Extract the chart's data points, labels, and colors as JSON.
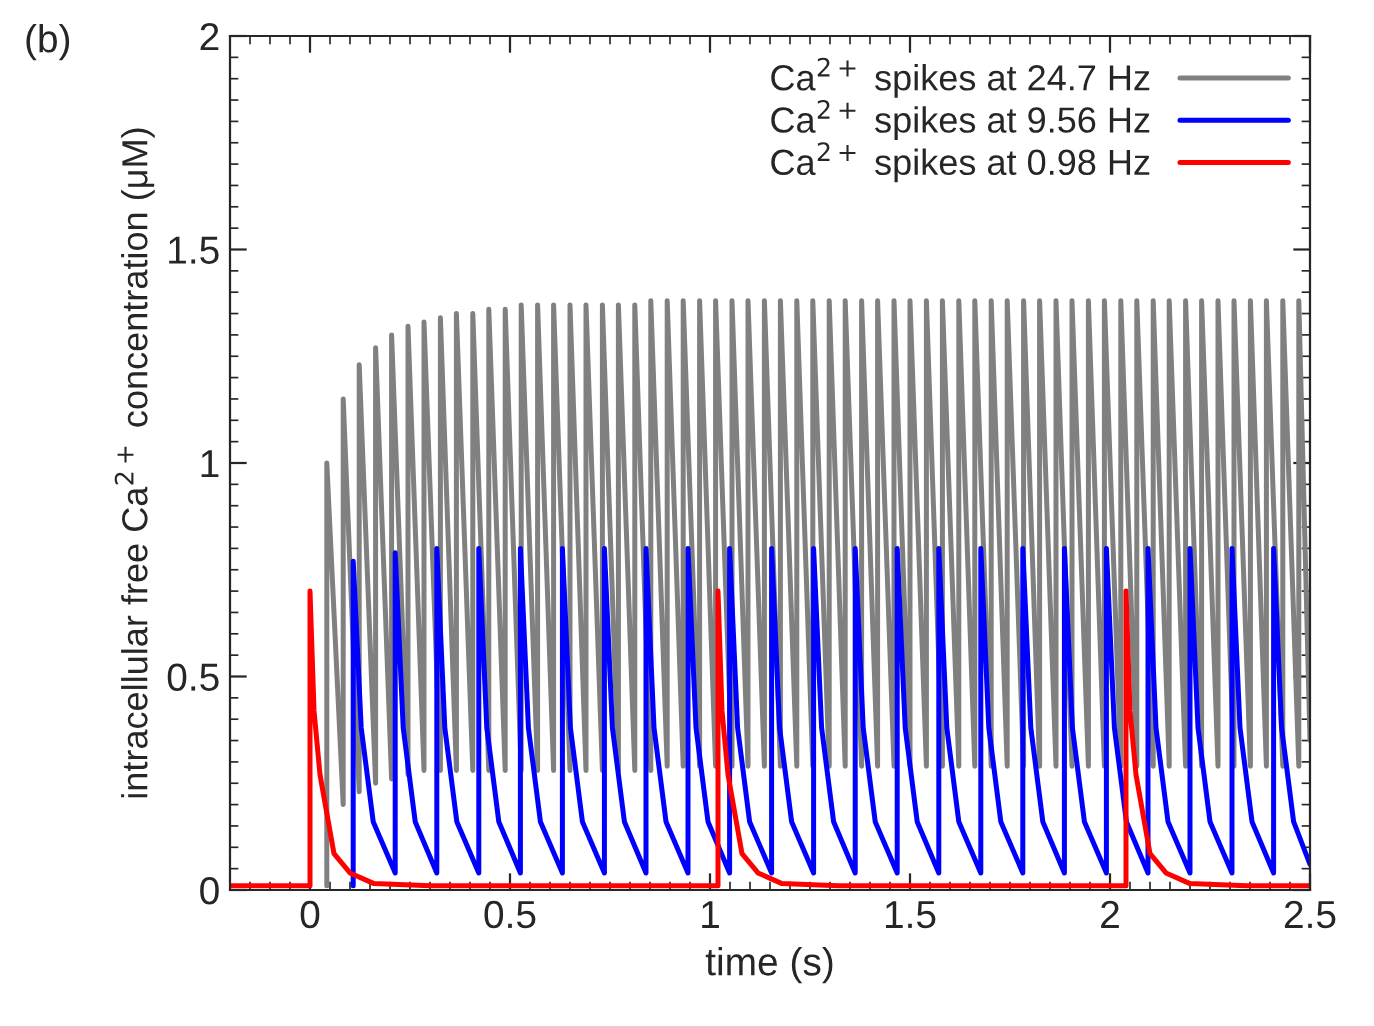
{
  "chart_data": {
    "type": "line",
    "xlabel": "time (s)",
    "ylabel": "intracellular free Ca$^{2+}$ concentration (μM)",
    "annotations": [
      "(b)"
    ],
    "xlim": [
      -0.2,
      2.5
    ],
    "xticks": [
      0,
      0.5,
      1,
      1.5,
      2,
      2.5
    ],
    "ylim": [
      0,
      2
    ],
    "yticks": [
      0,
      0.5,
      1,
      1.5,
      2
    ],
    "grid": false,
    "legend": "top right",
    "marker": "none",
    "line_style": "solid",
    "series": [
      {
        "name": "Ca$^{2+}$ spikes at 24.7 Hz",
        "color": "#808080",
        "x": [
          0.042,
          0.042,
          0.083,
          0.083,
          0.123,
          0.123,
          0.164,
          0.164,
          0.204,
          0.204,
          0.245,
          0.245,
          0.285,
          0.285,
          0.326,
          0.326,
          0.366,
          0.366,
          0.407,
          0.407,
          0.447,
          0.447,
          0.488,
          0.488,
          0.528,
          0.528,
          0.569,
          0.569,
          0.609,
          0.609,
          0.65,
          0.65,
          0.69,
          0.69,
          0.731,
          0.731,
          0.771,
          0.771,
          0.812,
          0.812,
          0.852,
          0.852,
          0.893,
          0.893,
          0.933,
          0.933,
          0.974,
          0.974,
          1.014,
          1.014,
          1.055,
          1.055,
          1.095,
          1.095,
          1.136,
          1.136,
          1.176,
          1.176,
          1.217,
          1.217,
          1.257,
          1.257,
          1.298,
          1.298,
          1.338,
          1.338,
          1.379,
          1.379,
          1.419,
          1.419,
          1.46,
          1.46,
          1.5,
          1.5,
          1.541,
          1.541,
          1.581,
          1.581,
          1.622,
          1.622,
          1.662,
          1.662,
          1.703,
          1.703,
          1.743,
          1.743,
          1.784,
          1.784,
          1.824,
          1.824,
          1.865,
          1.865,
          1.905,
          1.905,
          1.946,
          1.946,
          1.986,
          1.986,
          2.027,
          2.027,
          2.067,
          2.067,
          2.108,
          2.108,
          2.148,
          2.148,
          2.189,
          2.189,
          2.229,
          2.229,
          2.27,
          2.27,
          2.31,
          2.31,
          2.351,
          2.351,
          2.391,
          2.391,
          2.432,
          2.432,
          2.472,
          2.472,
          2.5
        ],
        "values": [
          0.01,
          1.0,
          0.2,
          1.15,
          0.23,
          1.23,
          0.25,
          1.27,
          0.26,
          1.3,
          0.27,
          1.32,
          0.28,
          1.33,
          0.28,
          1.34,
          0.28,
          1.35,
          0.28,
          1.35,
          0.28,
          1.36,
          0.28,
          1.36,
          0.28,
          1.37,
          0.28,
          1.37,
          0.28,
          1.37,
          0.28,
          1.37,
          0.28,
          1.37,
          0.28,
          1.37,
          0.28,
          1.37,
          0.28,
          1.37,
          0.28,
          1.38,
          0.29,
          1.38,
          0.29,
          1.38,
          0.29,
          1.38,
          0.29,
          1.38,
          0.29,
          1.38,
          0.29,
          1.38,
          0.29,
          1.38,
          0.29,
          1.38,
          0.29,
          1.38,
          0.29,
          1.38,
          0.29,
          1.38,
          0.29,
          1.38,
          0.29,
          1.38,
          0.29,
          1.38,
          0.29,
          1.38,
          0.29,
          1.38,
          0.29,
          1.38,
          0.29,
          1.38,
          0.29,
          1.38,
          0.29,
          1.38,
          0.29,
          1.38,
          0.29,
          1.38,
          0.29,
          1.38,
          0.29,
          1.38,
          0.29,
          1.38,
          0.29,
          1.38,
          0.29,
          1.38,
          0.29,
          1.38,
          0.29,
          1.38,
          0.29,
          1.38,
          0.29,
          1.38,
          0.29,
          1.38,
          0.29,
          1.38,
          0.29,
          1.38,
          0.29,
          1.38,
          0.29,
          1.38,
          0.29,
          1.38,
          0.29,
          1.38,
          0.29,
          1.38,
          0.29,
          1.38,
          0.35
        ]
      },
      {
        "name": "Ca$^{2+}$ spikes at 9.56 Hz",
        "color": "#0000ff",
        "x": [
          0.108,
          0.108,
          0.128,
          0.158,
          0.213,
          0.213,
          0.233,
          0.263,
          0.317,
          0.317,
          0.337,
          0.367,
          0.422,
          0.422,
          0.442,
          0.472,
          0.526,
          0.526,
          0.546,
          0.576,
          0.631,
          0.631,
          0.651,
          0.681,
          0.736,
          0.736,
          0.756,
          0.786,
          0.84,
          0.84,
          0.86,
          0.89,
          0.945,
          0.945,
          0.965,
          0.995,
          1.049,
          1.049,
          1.069,
          1.099,
          1.154,
          1.154,
          1.174,
          1.204,
          1.259,
          1.259,
          1.279,
          1.309,
          1.363,
          1.363,
          1.383,
          1.413,
          1.468,
          1.468,
          1.488,
          1.518,
          1.572,
          1.572,
          1.592,
          1.622,
          1.677,
          1.677,
          1.697,
          1.727,
          1.782,
          1.782,
          1.802,
          1.832,
          1.886,
          1.886,
          1.906,
          1.936,
          1.991,
          1.991,
          2.011,
          2.041,
          2.095,
          2.095,
          2.115,
          2.145,
          2.2,
          2.2,
          2.22,
          2.25,
          2.305,
          2.305,
          2.325,
          2.355,
          2.409,
          2.409,
          2.429,
          2.459,
          2.5
        ],
        "values": [
          0.01,
          0.77,
          0.38,
          0.16,
          0.04,
          0.79,
          0.38,
          0.16,
          0.04,
          0.8,
          0.38,
          0.16,
          0.04,
          0.8,
          0.38,
          0.16,
          0.04,
          0.8,
          0.38,
          0.16,
          0.04,
          0.8,
          0.38,
          0.16,
          0.04,
          0.8,
          0.38,
          0.16,
          0.04,
          0.8,
          0.38,
          0.16,
          0.04,
          0.8,
          0.38,
          0.16,
          0.04,
          0.8,
          0.38,
          0.16,
          0.04,
          0.8,
          0.38,
          0.16,
          0.04,
          0.8,
          0.38,
          0.16,
          0.04,
          0.8,
          0.38,
          0.16,
          0.04,
          0.8,
          0.38,
          0.16,
          0.04,
          0.8,
          0.38,
          0.16,
          0.04,
          0.8,
          0.38,
          0.16,
          0.04,
          0.8,
          0.38,
          0.16,
          0.04,
          0.8,
          0.38,
          0.16,
          0.04,
          0.8,
          0.38,
          0.16,
          0.04,
          0.8,
          0.38,
          0.16,
          0.04,
          0.8,
          0.38,
          0.16,
          0.04,
          0.8,
          0.38,
          0.16,
          0.04,
          0.8,
          0.38,
          0.16,
          0.06
        ]
      },
      {
        "name": "Ca$^{2+}$ spikes at 0.98 Hz",
        "color": "#ff0000",
        "x": [
          -0.2,
          0,
          0,
          0.01,
          0.025,
          0.06,
          0.1,
          0.16,
          0.3,
          1.02,
          1.02,
          1.03,
          1.045,
          1.08,
          1.12,
          1.18,
          1.32,
          2.04,
          2.04,
          2.05,
          2.065,
          2.1,
          2.14,
          2.2,
          2.34,
          2.5
        ],
        "values": [
          0.01,
          0.01,
          0.7,
          0.42,
          0.27,
          0.085,
          0.04,
          0.015,
          0.01,
          0.01,
          0.7,
          0.42,
          0.27,
          0.085,
          0.04,
          0.015,
          0.01,
          0.01,
          0.7,
          0.42,
          0.27,
          0.085,
          0.04,
          0.015,
          0.01,
          0.01
        ]
      }
    ]
  }
}
